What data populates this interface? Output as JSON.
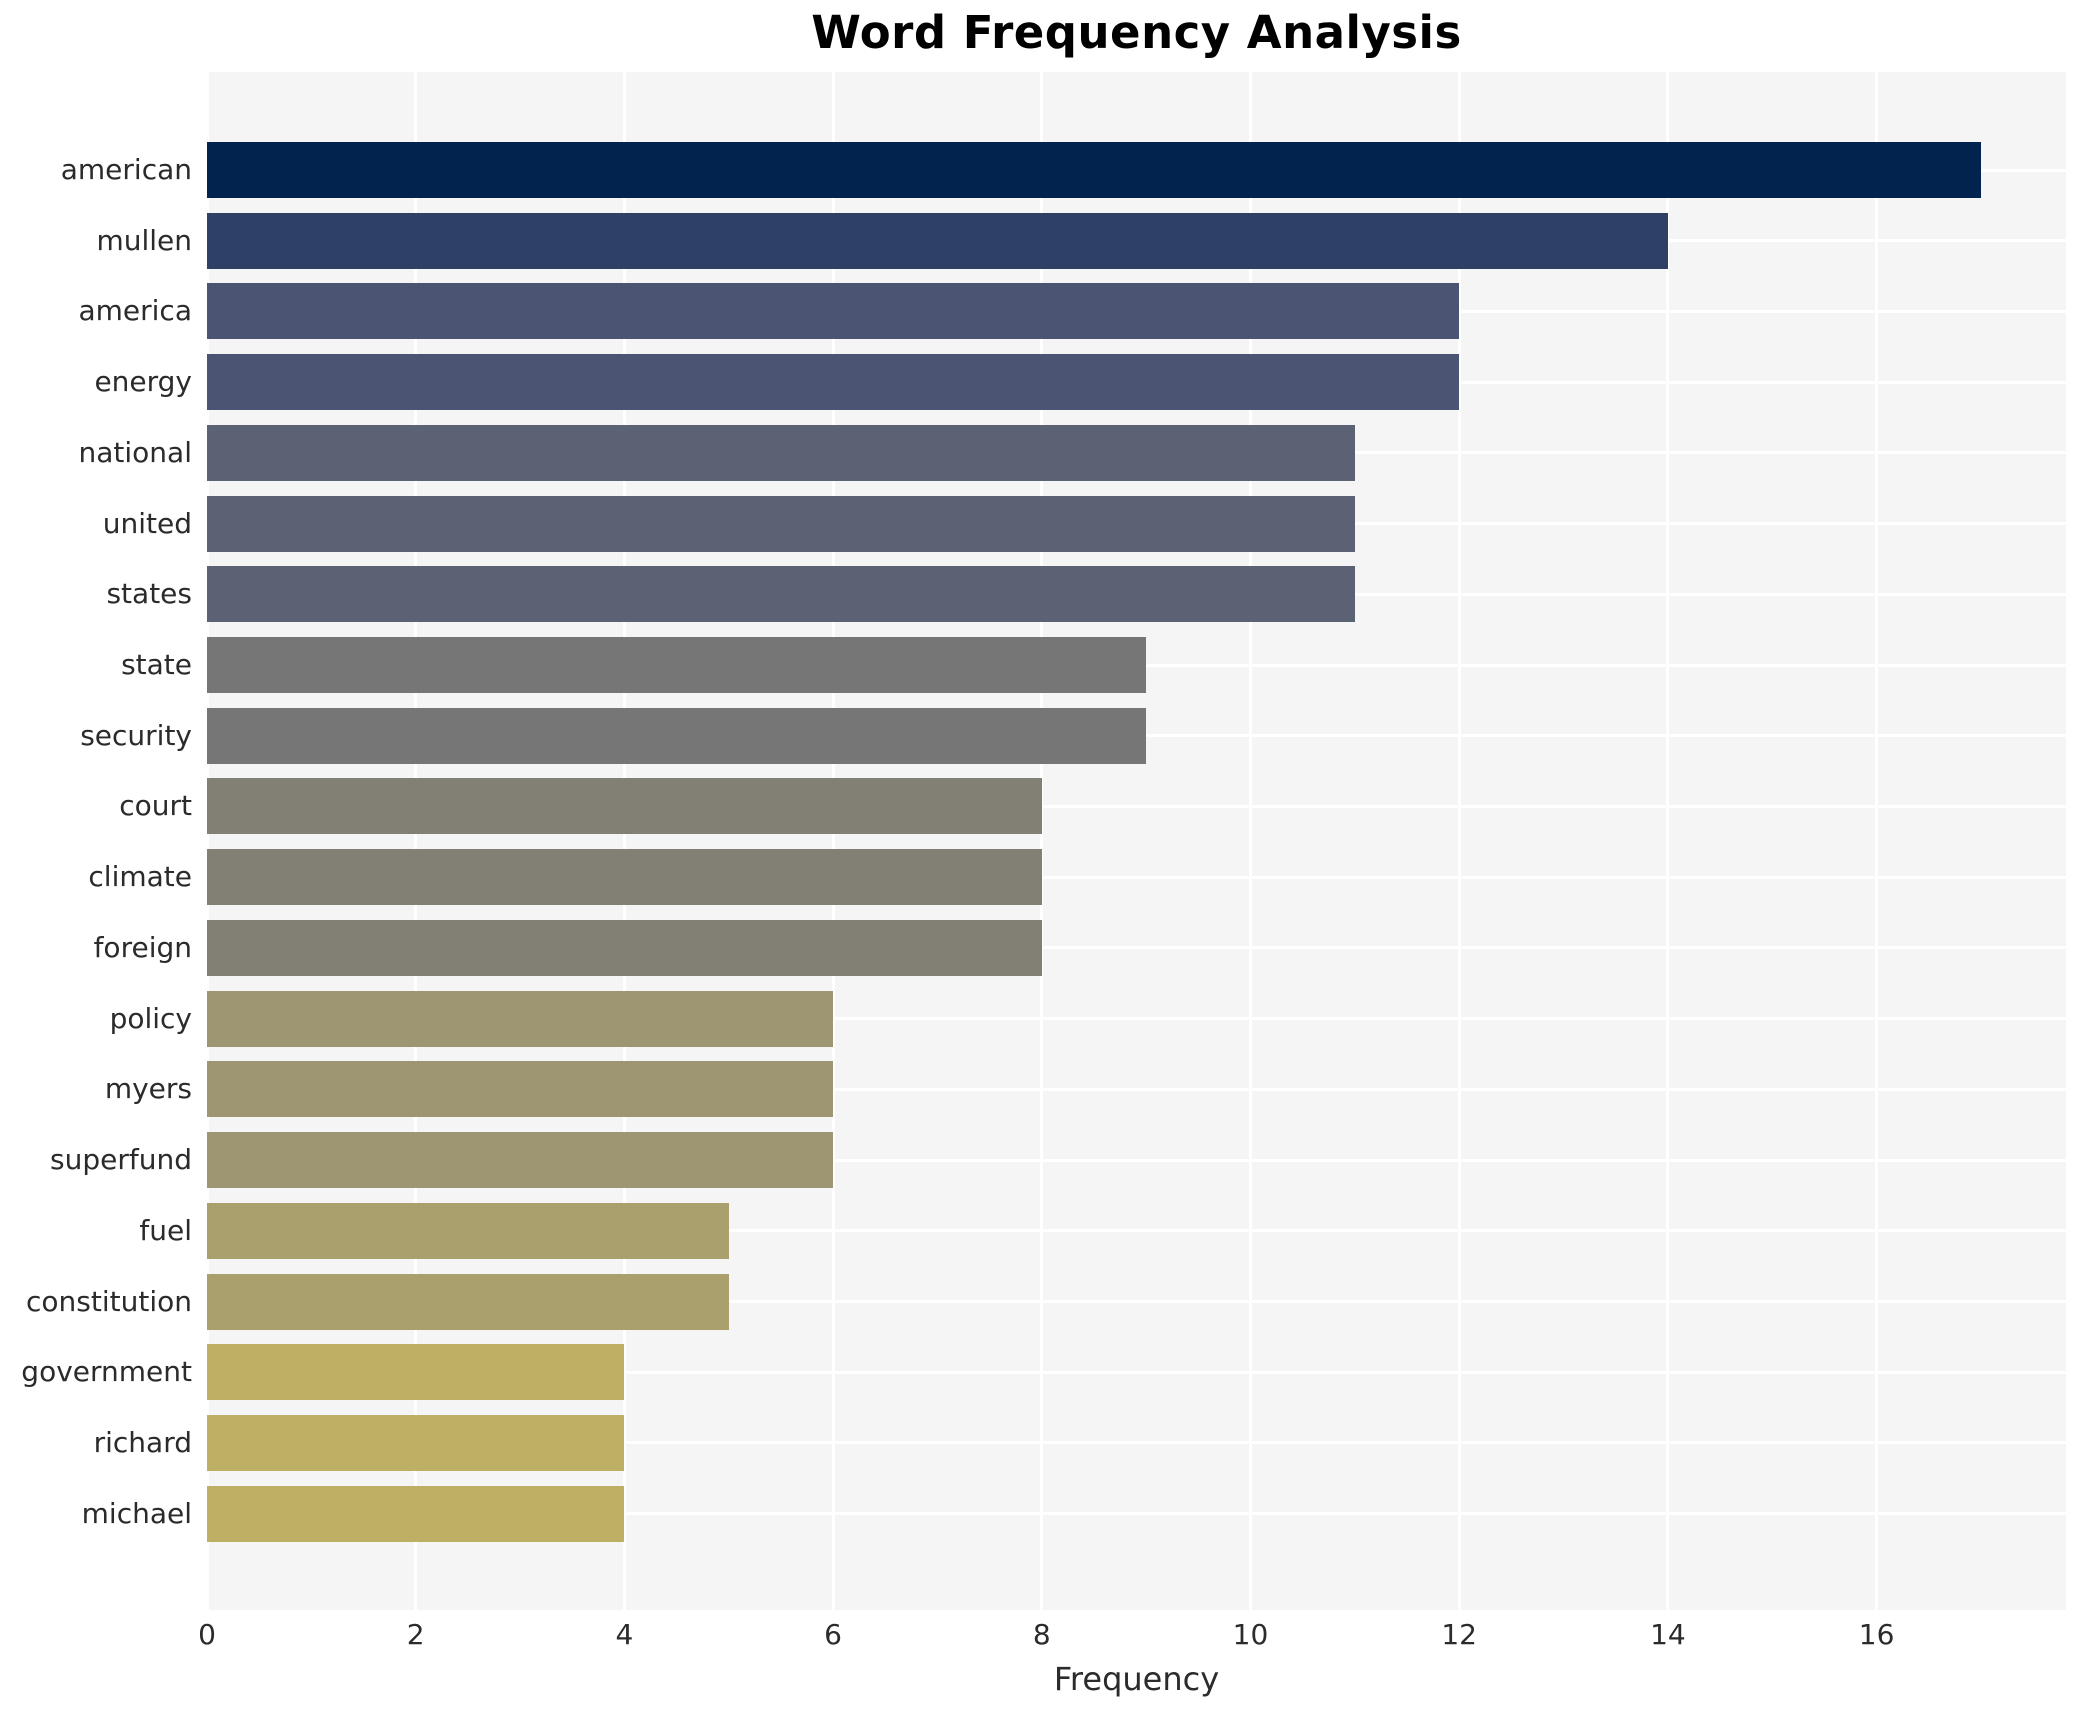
{
  "chart": {
    "title": "Word Frequency Analysis",
    "xlabel": "Frequency"
  },
  "chart_data": {
    "type": "bar",
    "orientation": "horizontal",
    "title": "Word Frequency Analysis",
    "xlabel": "Frequency",
    "ylabel": "",
    "categories": [
      "american",
      "mullen",
      "america",
      "energy",
      "national",
      "united",
      "states",
      "state",
      "security",
      "court",
      "climate",
      "foreign",
      "policy",
      "myers",
      "superfund",
      "fuel",
      "constitution",
      "government",
      "richard",
      "michael"
    ],
    "values": [
      17,
      14,
      12,
      12,
      11,
      11,
      11,
      9,
      9,
      8,
      8,
      8,
      6,
      6,
      6,
      5,
      5,
      4,
      4,
      4
    ],
    "bar_colors": [
      "#02234e",
      "#2f4067",
      "#4b5472",
      "#4b5472",
      "#5b6273",
      "#5b6273",
      "#5b6273",
      "#767676",
      "#767676",
      "#827f75",
      "#827f75",
      "#827f75",
      "#9e9672",
      "#9e9672",
      "#9e9672",
      "#a9a06d",
      "#a9a06d",
      "#bdb065",
      "#bdb065",
      "#bdb065"
    ],
    "x_ticks": [
      0,
      2,
      4,
      6,
      8,
      10,
      12,
      14,
      16
    ],
    "xlim": [
      0,
      17.82
    ],
    "grid": true,
    "legend": "none",
    "plot_bg_color": "#f5f5f6",
    "grid_color": "#ffffff"
  }
}
